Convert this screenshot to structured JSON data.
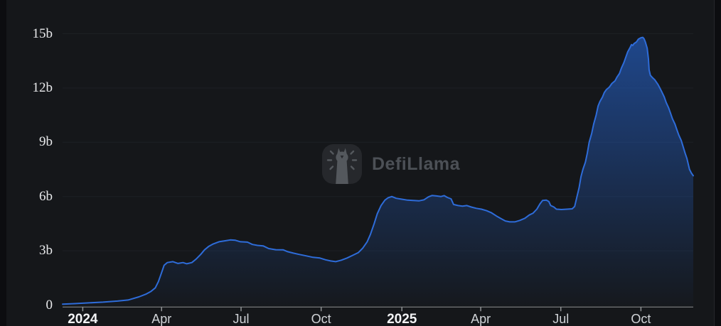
{
  "watermark": {
    "text": "DefiLlama"
  },
  "colors": {
    "background": "#15171a",
    "gutter": "#0c0d10",
    "grid": "#1d2024",
    "axis": "#8e9194",
    "line": "#2e6cd9",
    "fill_top": "rgba(38,104,217,0.60)",
    "fill_bottom": "rgba(38,104,217,0.02)",
    "y_label": "#e9eaec",
    "x_label_month": "#cfd2d6",
    "x_label_year": "#f2f3f5",
    "watermark_text": "#4c5056",
    "logo_bg": "#26282c",
    "logo_fg": "#54585d"
  },
  "chart_data": {
    "type": "area",
    "unit": "billions",
    "ylim": [
      0,
      15.7
    ],
    "grid": "horizontal-only",
    "legend": "none",
    "y_ticks": [
      {
        "label": "0",
        "value": 0
      },
      {
        "label": "3b",
        "value": 3
      },
      {
        "label": "6b",
        "value": 6
      },
      {
        "label": "9b",
        "value": 9
      },
      {
        "label": "12b",
        "value": 12
      },
      {
        "label": "15b",
        "value": 15
      }
    ],
    "x_ticks": [
      {
        "label": "2024",
        "pos": 0.032,
        "emphasis": true
      },
      {
        "label": "Apr",
        "pos": 0.157,
        "emphasis": false
      },
      {
        "label": "Jul",
        "pos": 0.283,
        "emphasis": false
      },
      {
        "label": "Oct",
        "pos": 0.41,
        "emphasis": false
      },
      {
        "label": "2025",
        "pos": 0.538,
        "emphasis": true
      },
      {
        "label": "Apr",
        "pos": 0.663,
        "emphasis": false
      },
      {
        "label": "Jul",
        "pos": 0.79,
        "emphasis": false
      },
      {
        "label": "Oct",
        "pos": 0.917,
        "emphasis": false
      }
    ],
    "series": [
      {
        "points": [
          [
            0.0,
            0.05
          ],
          [
            0.019,
            0.08
          ],
          [
            0.042,
            0.12
          ],
          [
            0.064,
            0.16
          ],
          [
            0.087,
            0.22
          ],
          [
            0.104,
            0.28
          ],
          [
            0.121,
            0.45
          ],
          [
            0.132,
            0.6
          ],
          [
            0.14,
            0.75
          ],
          [
            0.147,
            0.95
          ],
          [
            0.152,
            1.3
          ],
          [
            0.157,
            1.8
          ],
          [
            0.161,
            2.2
          ],
          [
            0.166,
            2.35
          ],
          [
            0.175,
            2.4
          ],
          [
            0.183,
            2.3
          ],
          [
            0.191,
            2.35
          ],
          [
            0.197,
            2.28
          ],
          [
            0.205,
            2.35
          ],
          [
            0.212,
            2.55
          ],
          [
            0.219,
            2.8
          ],
          [
            0.225,
            3.05
          ],
          [
            0.232,
            3.25
          ],
          [
            0.239,
            3.38
          ],
          [
            0.248,
            3.5
          ],
          [
            0.257,
            3.55
          ],
          [
            0.266,
            3.6
          ],
          [
            0.274,
            3.58
          ],
          [
            0.282,
            3.5
          ],
          [
            0.293,
            3.48
          ],
          [
            0.301,
            3.35
          ],
          [
            0.309,
            3.3
          ],
          [
            0.318,
            3.27
          ],
          [
            0.327,
            3.12
          ],
          [
            0.338,
            3.06
          ],
          [
            0.35,
            3.05
          ],
          [
            0.357,
            2.95
          ],
          [
            0.366,
            2.87
          ],
          [
            0.375,
            2.8
          ],
          [
            0.386,
            2.72
          ],
          [
            0.397,
            2.64
          ],
          [
            0.408,
            2.6
          ],
          [
            0.417,
            2.5
          ],
          [
            0.425,
            2.44
          ],
          [
            0.433,
            2.4
          ],
          [
            0.442,
            2.48
          ],
          [
            0.451,
            2.6
          ],
          [
            0.46,
            2.75
          ],
          [
            0.469,
            2.9
          ],
          [
            0.476,
            3.15
          ],
          [
            0.483,
            3.5
          ],
          [
            0.488,
            3.9
          ],
          [
            0.494,
            4.5
          ],
          [
            0.499,
            5.05
          ],
          [
            0.505,
            5.5
          ],
          [
            0.511,
            5.8
          ],
          [
            0.516,
            5.93
          ],
          [
            0.522,
            6.0
          ],
          [
            0.529,
            5.9
          ],
          [
            0.538,
            5.85
          ],
          [
            0.547,
            5.8
          ],
          [
            0.556,
            5.78
          ],
          [
            0.565,
            5.76
          ],
          [
            0.573,
            5.82
          ],
          [
            0.58,
            5.98
          ],
          [
            0.586,
            6.06
          ],
          [
            0.593,
            6.03
          ],
          [
            0.6,
            6.0
          ],
          [
            0.605,
            6.05
          ],
          [
            0.61,
            5.95
          ],
          [
            0.616,
            5.87
          ],
          [
            0.62,
            5.56
          ],
          [
            0.627,
            5.5
          ],
          [
            0.634,
            5.47
          ],
          [
            0.641,
            5.5
          ],
          [
            0.648,
            5.42
          ],
          [
            0.656,
            5.35
          ],
          [
            0.664,
            5.3
          ],
          [
            0.672,
            5.22
          ],
          [
            0.68,
            5.1
          ],
          [
            0.688,
            4.92
          ],
          [
            0.696,
            4.76
          ],
          [
            0.702,
            4.65
          ],
          [
            0.709,
            4.6
          ],
          [
            0.717,
            4.6
          ],
          [
            0.725,
            4.68
          ],
          [
            0.733,
            4.8
          ],
          [
            0.74,
            4.98
          ],
          [
            0.746,
            5.08
          ],
          [
            0.752,
            5.3
          ],
          [
            0.757,
            5.6
          ],
          [
            0.761,
            5.78
          ],
          [
            0.767,
            5.8
          ],
          [
            0.771,
            5.72
          ],
          [
            0.774,
            5.5
          ],
          [
            0.779,
            5.42
          ],
          [
            0.783,
            5.3
          ],
          [
            0.791,
            5.28
          ],
          [
            0.8,
            5.3
          ],
          [
            0.808,
            5.32
          ],
          [
            0.812,
            5.45
          ],
          [
            0.815,
            5.9
          ],
          [
            0.819,
            6.5
          ],
          [
            0.822,
            7.1
          ],
          [
            0.825,
            7.5
          ],
          [
            0.829,
            7.9
          ],
          [
            0.832,
            8.4
          ],
          [
            0.835,
            9.0
          ],
          [
            0.839,
            9.5
          ],
          [
            0.842,
            10.0
          ],
          [
            0.846,
            10.5
          ],
          [
            0.849,
            11.0
          ],
          [
            0.852,
            11.25
          ],
          [
            0.856,
            11.5
          ],
          [
            0.859,
            11.75
          ],
          [
            0.862,
            11.9
          ],
          [
            0.867,
            12.05
          ],
          [
            0.871,
            12.25
          ],
          [
            0.876,
            12.4
          ],
          [
            0.879,
            12.6
          ],
          [
            0.883,
            12.8
          ],
          [
            0.886,
            13.1
          ],
          [
            0.89,
            13.4
          ],
          [
            0.893,
            13.7
          ],
          [
            0.896,
            14.0
          ],
          [
            0.9,
            14.25
          ],
          [
            0.902,
            14.4
          ],
          [
            0.904,
            14.35
          ],
          [
            0.906,
            14.45
          ],
          [
            0.91,
            14.55
          ],
          [
            0.913,
            14.7
          ],
          [
            0.917,
            14.78
          ],
          [
            0.92,
            14.8
          ],
          [
            0.922,
            14.72
          ],
          [
            0.924,
            14.55
          ],
          [
            0.927,
            14.2
          ],
          [
            0.929,
            13.6
          ],
          [
            0.93,
            13.0
          ],
          [
            0.932,
            12.7
          ],
          [
            0.936,
            12.55
          ],
          [
            0.939,
            12.45
          ],
          [
            0.944,
            12.2
          ],
          [
            0.947,
            12.0
          ],
          [
            0.95,
            11.8
          ],
          [
            0.954,
            11.5
          ],
          [
            0.957,
            11.2
          ],
          [
            0.961,
            10.9
          ],
          [
            0.964,
            10.6
          ],
          [
            0.967,
            10.3
          ],
          [
            0.971,
            10.0
          ],
          [
            0.974,
            9.7
          ],
          [
            0.977,
            9.4
          ],
          [
            0.981,
            9.1
          ],
          [
            0.984,
            8.75
          ],
          [
            0.987,
            8.4
          ],
          [
            0.99,
            8.1
          ],
          [
            0.992,
            7.8
          ],
          [
            0.994,
            7.5
          ],
          [
            0.997,
            7.3
          ],
          [
            1.0,
            7.15
          ]
        ]
      }
    ]
  }
}
